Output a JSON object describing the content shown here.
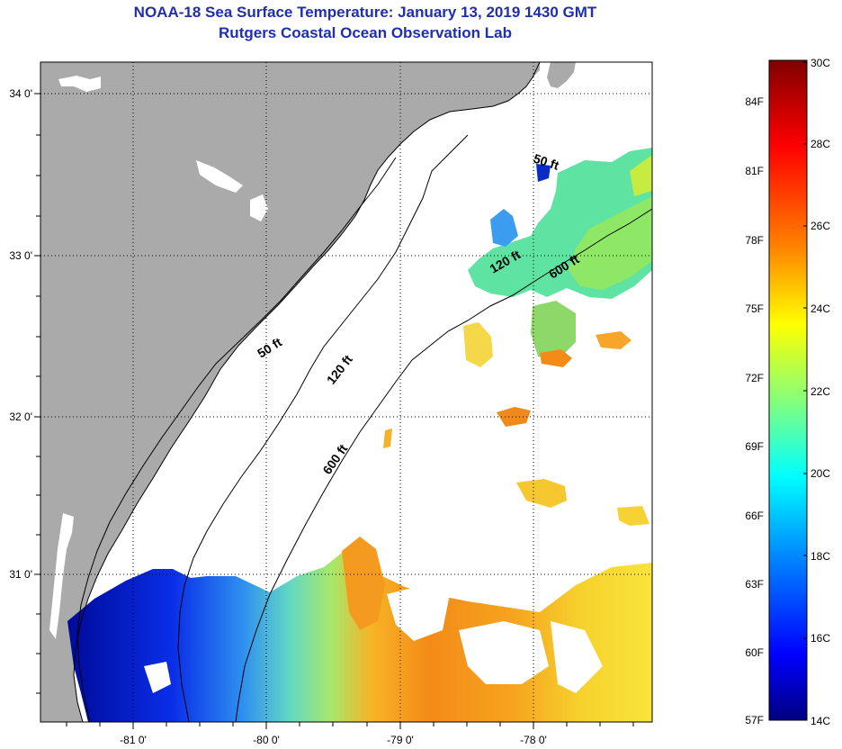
{
  "header": {
    "title": "NOAA-18 Sea Surface Temperature:  January 13, 2019 1430 GMT",
    "subtitle": "Rutgers Coastal Ocean Observation Lab"
  },
  "map": {
    "lat_labels": [
      "34 0'",
      "33 0'",
      "32 0'",
      "31 0'"
    ],
    "lon_labels": [
      "-81 0'",
      "-80 0'",
      "-79 0'",
      "-78 0'"
    ],
    "contour_labels": {
      "c50_north": "50 ft",
      "c50_south": "50 ft",
      "c120_north": "120 ft",
      "c120_south": "120 ft",
      "c600_north": "600 ft",
      "c600_south": "600 ft"
    },
    "colors": {
      "land": "#aaaaaa",
      "ocean_nodata": "#ffffff"
    }
  },
  "colorbar": {
    "fahrenheit_labels": [
      "84F",
      "81F",
      "78F",
      "75F",
      "72F",
      "69F",
      "66F",
      "63F",
      "60F",
      "57F"
    ],
    "celsius_labels": [
      "30C",
      "28C",
      "26C",
      "24C",
      "22C",
      "20C",
      "18C",
      "16C",
      "14C"
    ],
    "gradient_colors": [
      "#800000",
      "#ff0000",
      "#ff8000",
      "#ffff00",
      "#80ff80",
      "#00ffff",
      "#0080ff",
      "#0000ff",
      "#000080"
    ]
  }
}
